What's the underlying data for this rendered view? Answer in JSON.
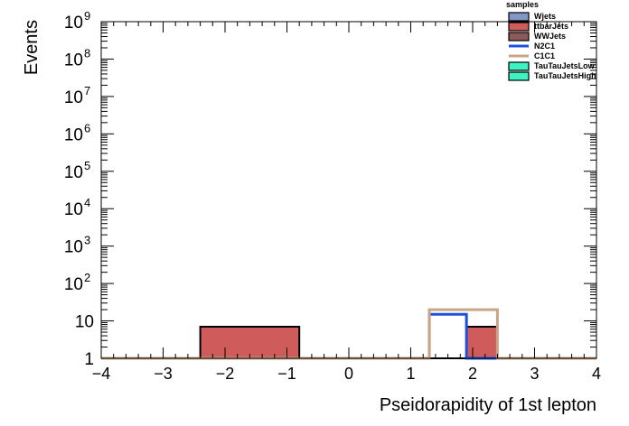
{
  "chart_data": {
    "type": "histogram",
    "xlabel": "Pseidorapidity of 1st lepton",
    "ylabel": "Events",
    "xlim": [
      -4,
      4
    ],
    "ylim": [
      1,
      1000000000
    ],
    "yscale": "log",
    "grid": false,
    "legend_placement": "top-right",
    "x_ticks": [
      "−4",
      "−3",
      "−2",
      "−1",
      "0",
      "1",
      "2",
      "3",
      "4"
    ],
    "y_ticks": [
      {
        "value": 1,
        "base": "1",
        "exp": ""
      },
      {
        "value": 10,
        "base": "10",
        "exp": ""
      },
      {
        "value": 100,
        "base": "10",
        "exp": "2"
      },
      {
        "value": 1000,
        "base": "10",
        "exp": "3"
      },
      {
        "value": 10000,
        "base": "10",
        "exp": "4"
      },
      {
        "value": 100000,
        "base": "10",
        "exp": "5"
      },
      {
        "value": 1000000,
        "base": "10",
        "exp": "6"
      },
      {
        "value": 10000000,
        "base": "10",
        "exp": "7"
      },
      {
        "value": 100000000,
        "base": "10",
        "exp": "8"
      },
      {
        "value": 1000000000,
        "base": "10",
        "exp": "9"
      }
    ],
    "legend_title": "samples",
    "series": [
      {
        "name": "Wjets",
        "kind": "fill",
        "color": "#8297c7",
        "bins": []
      },
      {
        "name": "ttbarJets",
        "kind": "fill",
        "color": "#d05b5b",
        "bins": [
          {
            "x0": -2.4,
            "x1": -0.8,
            "y": 7
          },
          {
            "x0": 1.9,
            "x1": 2.4,
            "y": 7
          }
        ]
      },
      {
        "name": "WWJets",
        "kind": "fill",
        "color": "#8c5a5a",
        "bins": []
      },
      {
        "name": "N2C1",
        "kind": "line",
        "color": "#1f4fe0",
        "bins": [
          {
            "x0": 1.3,
            "x1": 1.9,
            "y": 15
          }
        ]
      },
      {
        "name": "C1C1",
        "kind": "line",
        "color": "#c9a586",
        "bins": [
          {
            "x0": 1.3,
            "x1": 2.4,
            "y": 20
          }
        ]
      },
      {
        "name": "TauTauJetsLow",
        "kind": "fill",
        "color": "#3ef2c4",
        "bins": []
      },
      {
        "name": "TauTauJetsHigh",
        "kind": "fill",
        "color": "#3ef2c4",
        "bins": []
      }
    ],
    "total_outline": [
      {
        "x0": -2.4,
        "x1": -0.8,
        "y": 7
      },
      {
        "x0": 1.3,
        "x1": 1.9,
        "y": 1
      },
      {
        "x0": 1.9,
        "x1": 2.4,
        "y": 7
      }
    ]
  }
}
